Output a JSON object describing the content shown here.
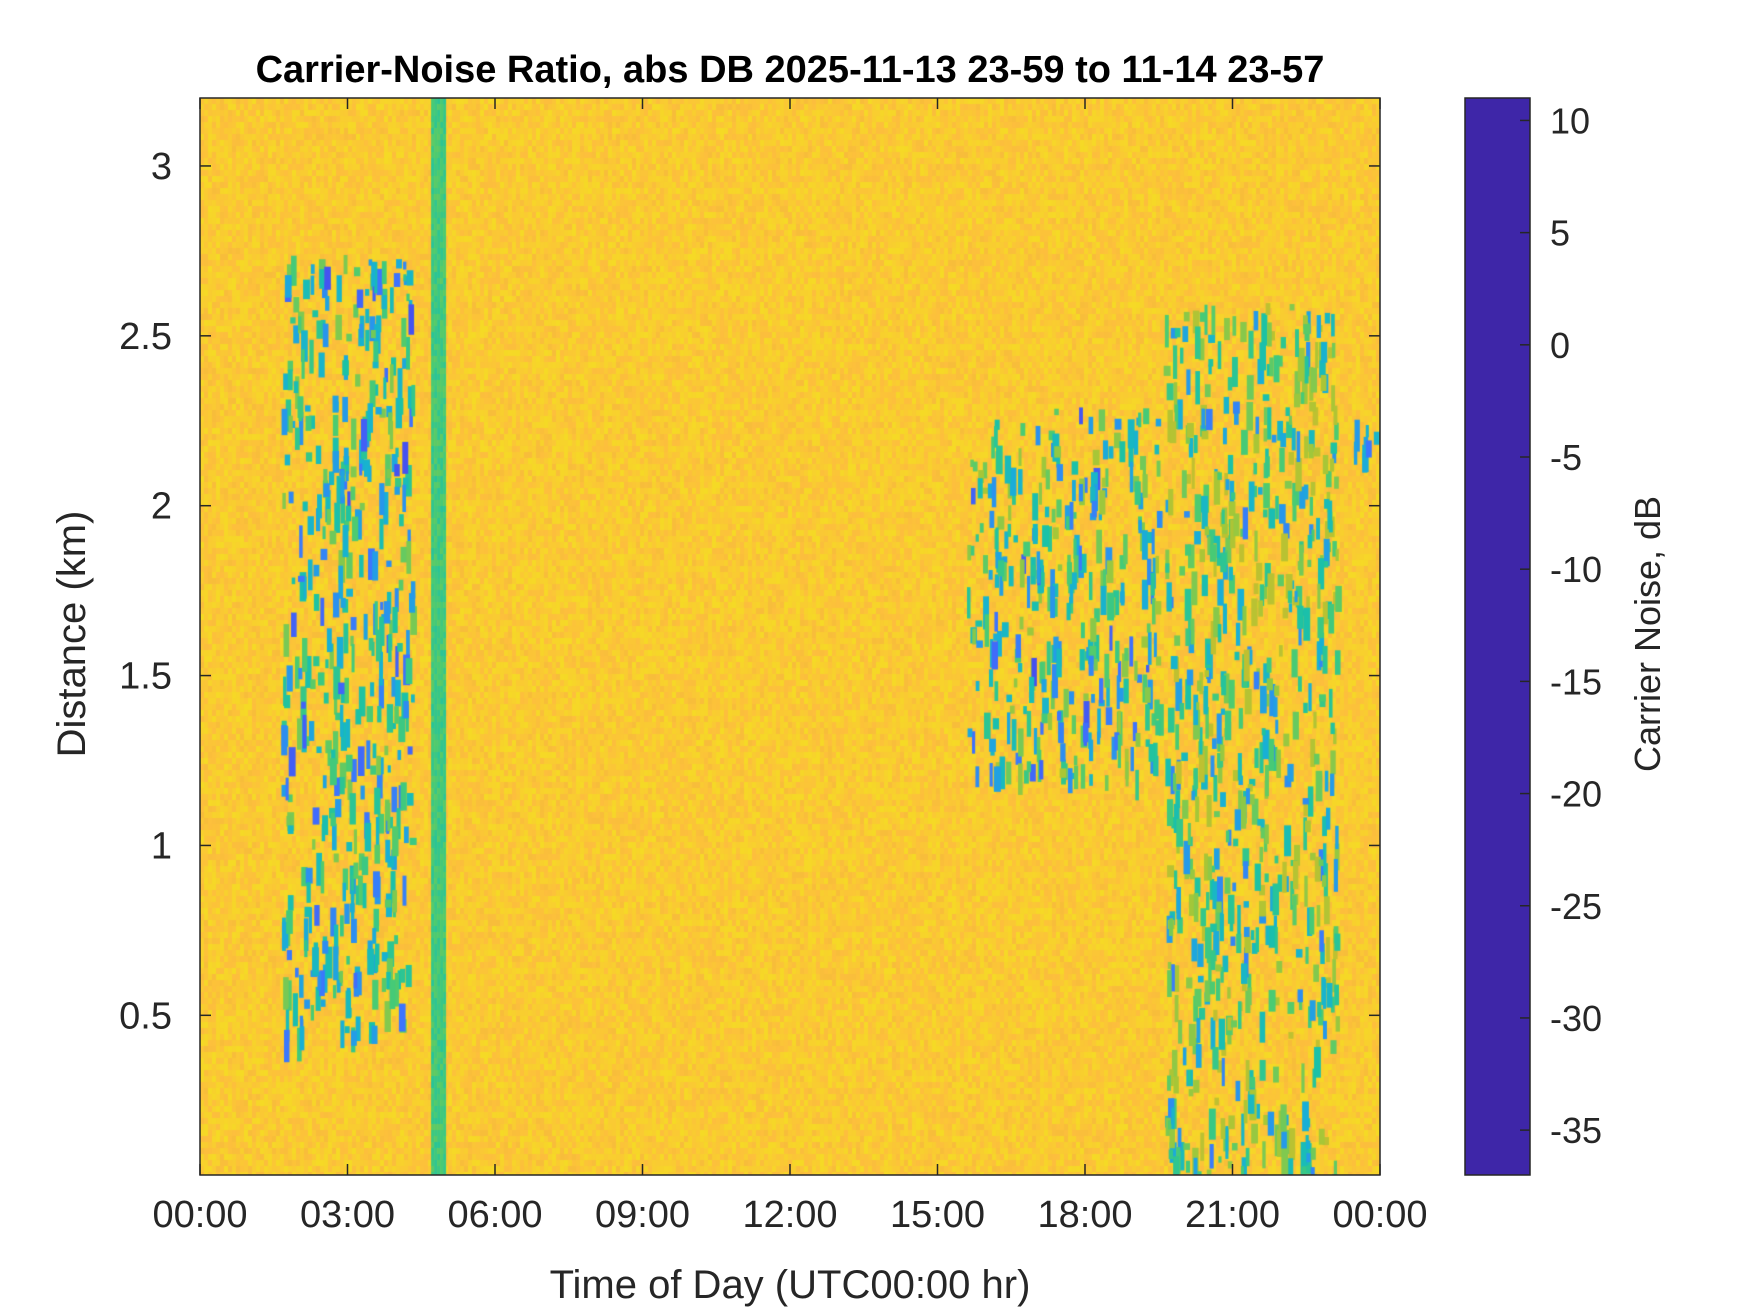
{
  "chart_data": {
    "type": "heatmap",
    "title": "Carrier-Noise Ratio, abs DB 2025-11-13 23-59 to 11-14 23-57",
    "xlabel": "Time of Day (UTC00:00 hr)",
    "ylabel": "Distance (km)",
    "colorbar_label": "Carrier Noise, dB",
    "x_unit": "hours",
    "xlim": [
      0,
      24
    ],
    "ylim": [
      0.03,
      3.2
    ],
    "clim": [
      -37,
      11
    ],
    "x_ticks": [
      0,
      3,
      6,
      9,
      12,
      15,
      18,
      21,
      24
    ],
    "x_tick_labels": [
      "00:00",
      "03:00",
      "06:00",
      "09:00",
      "12:00",
      "15:00",
      "18:00",
      "21:00",
      "00:00"
    ],
    "y_ticks": [
      0.5,
      1,
      1.5,
      2,
      2.5,
      3
    ],
    "y_tick_labels": [
      "0.5",
      "1",
      "1.5",
      "2",
      "2.5",
      "3"
    ],
    "colorbar_ticks": [
      10,
      5,
      0,
      -5,
      -10,
      -15,
      -20,
      -25,
      -30,
      -35
    ],
    "colorbar_tick_labels": [
      "10",
      "5",
      "0",
      "-5",
      "-10",
      "-15",
      "-20",
      "-25",
      "-30",
      "-35"
    ],
    "background_value": -30,
    "colormap": [
      "#3e26a8",
      "#4746eb",
      "#3e74fe",
      "#2797eb",
      "#18b1d4",
      "#1bc2a6",
      "#4ccb71",
      "#a4c738",
      "#d9ba29",
      "#fdbe3d",
      "#f5db24",
      "#f9fb0e"
    ],
    "features": [
      {
        "name": "early echo cluster",
        "x_range": [
          1.65,
          4.3
        ],
        "y_range": [
          0.45,
          2.75
        ],
        "value_min": -18,
        "value_max": 6
      },
      {
        "name": "vertical band",
        "x_range": [
          4.7,
          5.0
        ],
        "y_range": [
          0.03,
          3.2
        ],
        "value": -14
      },
      {
        "name": "afternoon echo cluster",
        "x_range": [
          15.6,
          19.5
        ],
        "y_range": [
          1.2,
          2.3
        ],
        "value_min": -20,
        "value_max": 7
      },
      {
        "name": "evening low-level echo",
        "x_range": [
          19.6,
          23.1
        ],
        "y_range": [
          0.03,
          2.6
        ],
        "value_min": -22,
        "value_max": 2
      },
      {
        "name": "late upper echo",
        "x_range": [
          23.4,
          23.9
        ],
        "y_range": [
          2.15,
          2.35
        ],
        "value_min": -8,
        "value_max": 3
      }
    ]
  }
}
